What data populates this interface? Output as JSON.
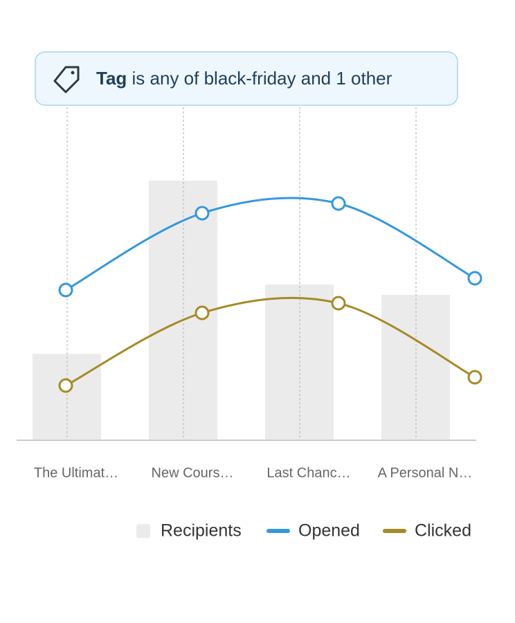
{
  "chart_data": {
    "type": "bar-line",
    "filter": {
      "field": "Tag",
      "text": "is any of black-friday and 1 other"
    },
    "categories": [
      "The Ultimat…",
      "New Cours…",
      "Last Chanc…",
      "A Personal N…"
    ],
    "ylim": [
      0,
      100
    ],
    "series": [
      {
        "name": "Recipients",
        "kind": "bar",
        "color": "#ebebeb",
        "values": [
          25,
          75,
          45,
          42
        ]
      },
      {
        "name": "Opened",
        "kind": "line",
        "color": "#3498db",
        "values": [
          43.4,
          65.6,
          68.4,
          46.8
        ]
      },
      {
        "name": "Clicked",
        "kind": "line",
        "color": "#a68a25",
        "values": [
          15.8,
          36.8,
          39.6,
          18.2
        ]
      }
    ]
  }
}
